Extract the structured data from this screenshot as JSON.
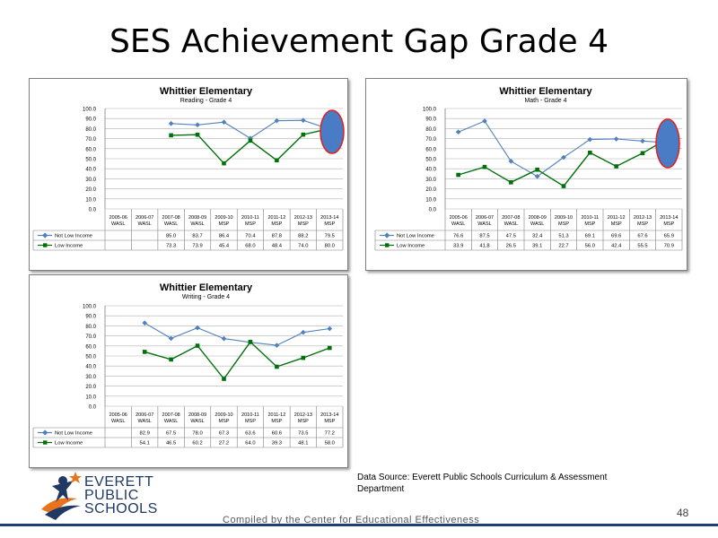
{
  "slide": {
    "title": "SES Achievement Gap Grade 4",
    "source": "Data Source: Everett Public Schools Curriculum  & Assessment Department",
    "compiled": "Compiled by the Center for Educational Effectiveness",
    "page_number": "48",
    "logo": {
      "line1": "EVERETT",
      "line2": "PUBLIC",
      "line3": "SCHOOLS"
    }
  },
  "colors": {
    "not_low_income": "#4f81bd",
    "low_income": "#00700a",
    "highlight_fill": "#4a7cc5",
    "highlight_stroke": "#e0201c",
    "accent_line": "#1f3f73"
  },
  "chart_data": [
    {
      "type": "line",
      "title": "Whittier Elementary",
      "subtitle": "Reading - Grade 4",
      "ylim": [
        0,
        100
      ],
      "yticks": [
        "0.0",
        "10.0",
        "20.0",
        "30.0",
        "40.0",
        "50.0",
        "60.0",
        "70.0",
        "80.0",
        "90.0",
        "100.0"
      ],
      "categories": [
        [
          "2005-06",
          "WASL"
        ],
        [
          "2006-07",
          "WASL"
        ],
        [
          "2007-08",
          "WASL"
        ],
        [
          "2008-09",
          "WASL"
        ],
        [
          "2009-10",
          "MSP"
        ],
        [
          "2010-11",
          "MSP"
        ],
        [
          "2011-12",
          "MSP"
        ],
        [
          "2012-13",
          "MSP"
        ],
        [
          "2013-14",
          "MSP"
        ]
      ],
      "series": [
        {
          "name": "Not Low Income",
          "values": [
            null,
            null,
            85.0,
            83.7,
            86.4,
            70.4,
            87.8,
            88.2,
            79.5
          ],
          "labels": [
            "",
            "",
            "85.0",
            "83.7",
            "86.4",
            "70.4",
            "87.8",
            "88.2",
            "79.5"
          ]
        },
        {
          "name": "Low Income",
          "values": [
            null,
            null,
            73.3,
            73.9,
            45.4,
            68.0,
            48.4,
            74.0,
            80.0
          ],
          "labels": [
            "",
            "",
            "73.3",
            "73.9",
            "45.4",
            "68.0",
            "48.4",
            "74.0",
            "80.0"
          ]
        }
      ],
      "grid": true,
      "legend": "table-bottom"
    },
    {
      "type": "line",
      "title": "Whittier Elementary",
      "subtitle": "Math - Grade 4",
      "ylim": [
        0,
        100
      ],
      "yticks": [
        "0.0",
        "10.0",
        "20.0",
        "30.0",
        "40.0",
        "50.0",
        "60.0",
        "70.0",
        "80.0",
        "90.0",
        "100.0"
      ],
      "categories": [
        [
          "2005-06",
          "WASL"
        ],
        [
          "2006-07",
          "WASL"
        ],
        [
          "2007-08",
          "WASL"
        ],
        [
          "2008-09",
          "WASL"
        ],
        [
          "2009-10",
          "MSP"
        ],
        [
          "2010-11",
          "MSP"
        ],
        [
          "2011-12",
          "MSP"
        ],
        [
          "2012-13",
          "MSP"
        ],
        [
          "2013-14",
          "MSP"
        ]
      ],
      "series": [
        {
          "name": "Not Low Income",
          "values": [
            76.6,
            87.5,
            47.5,
            32.4,
            51.3,
            69.1,
            69.6,
            67.6,
            65.9
          ],
          "labels": [
            "76.6",
            "87.5",
            "47.5",
            "32.4",
            "51.3",
            "69.1",
            "69.6",
            "67.6",
            "65.9"
          ]
        },
        {
          "name": "Low Income",
          "values": [
            33.9,
            41.8,
            26.5,
            39.1,
            22.7,
            56.0,
            42.4,
            55.5,
            70.9
          ],
          "labels": [
            "33.9",
            "41.8",
            "26.5",
            "39.1",
            "22.7",
            "56.0",
            "42.4",
            "55.5",
            "70.9"
          ]
        }
      ],
      "grid": true,
      "legend": "table-bottom"
    },
    {
      "type": "line",
      "title": "Whittier Elementary",
      "subtitle": "Writing - Grade 4",
      "ylim": [
        0,
        100
      ],
      "yticks": [
        "0.0",
        "10.0",
        "20.0",
        "30.0",
        "40.0",
        "50.0",
        "60.0",
        "70.0",
        "80.0",
        "90.0",
        "100.0"
      ],
      "categories": [
        [
          "2005-06",
          "WASL"
        ],
        [
          "2006-07",
          "WASL"
        ],
        [
          "2007-08",
          "WASL"
        ],
        [
          "2008-09",
          "WASL"
        ],
        [
          "2009-10",
          "MSP"
        ],
        [
          "2010-11",
          "MSP"
        ],
        [
          "2011-12",
          "MSP"
        ],
        [
          "2012-13",
          "MSP"
        ],
        [
          "2013-14",
          "MSP"
        ]
      ],
      "series": [
        {
          "name": "Not Low Income",
          "values": [
            null,
            82.9,
            67.5,
            78.0,
            67.3,
            63.6,
            60.6,
            73.5,
            77.2
          ],
          "labels": [
            "",
            "82.9",
            "67.5",
            "78.0",
            "67.3",
            "63.6",
            "60.6",
            "73.5",
            "77.2"
          ]
        },
        {
          "name": "Low Income",
          "values": [
            null,
            54.1,
            46.5,
            60.2,
            27.2,
            64.0,
            39.3,
            48.1,
            58.0
          ],
          "labels": [
            "",
            "54.1",
            "46.5",
            "60.2",
            "27.2",
            "64.0",
            "39.3",
            "48.1",
            "58.0"
          ]
        }
      ],
      "grid": true,
      "legend": "table-bottom"
    }
  ]
}
